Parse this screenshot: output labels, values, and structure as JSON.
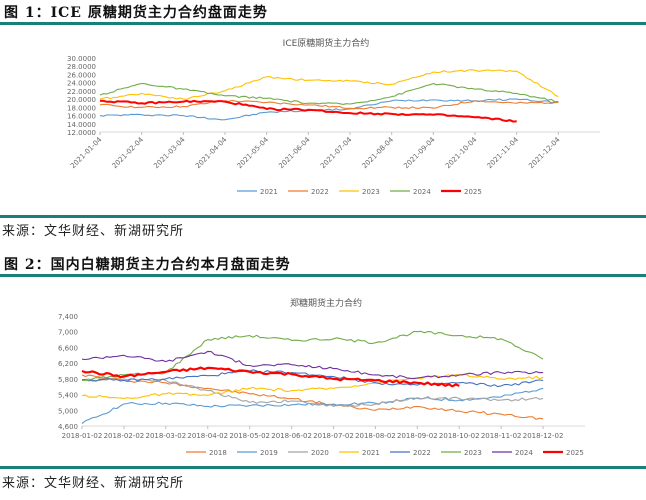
{
  "figure1": {
    "caption": "图 1：ICE 原糖期货主力合约盘面走势",
    "source": "来源：文华财经、新湖研究所"
  },
  "figure2": {
    "caption": "图 2：国内白糖期货主力合约本月盘面走势",
    "source": "来源：文华财经、新湖研究所"
  },
  "chart_data": [
    {
      "type": "line",
      "title": "ICE原糖期货主力合约",
      "xlabel": "",
      "ylabel": "",
      "ylim": [
        12,
        30
      ],
      "yticks": [
        "12.0000",
        "14.0000",
        "16.0000",
        "18.0000",
        "20.0000",
        "22.0000",
        "24.0000",
        "26.0000",
        "28.0000",
        "30.0000"
      ],
      "categories": [
        "2021-01-04",
        "2021-02-04",
        "2021-03-04",
        "2021-04-04",
        "2021-05-04",
        "2021-06-04",
        "2021-07-04",
        "2021-08-04",
        "2021-09-04",
        "2021-10-04",
        "2021-11-04",
        "2021-12-04"
      ],
      "legend_position": "bottom",
      "grid": false,
      "series": [
        {
          "name": "2021",
          "color": "#5b9bd5",
          "values": [
            16.0,
            16.2,
            16.0,
            15.0,
            16.8,
            17.2,
            17.6,
            19.6,
            19.8,
            19.6,
            20.0,
            19.2
          ]
        },
        {
          "name": "2022",
          "color": "#ed7d31",
          "values": [
            18.6,
            18.0,
            18.2,
            19.6,
            19.2,
            18.6,
            17.8,
            18.0,
            17.8,
            19.6,
            19.0,
            19.2
          ]
        },
        {
          "name": "2023",
          "color": "#ffc000",
          "values": [
            20.0,
            21.4,
            20.0,
            22.0,
            25.4,
            24.6,
            24.4,
            23.6,
            26.6,
            27.0,
            26.8,
            20.6
          ]
        },
        {
          "name": "2024",
          "color": "#70ad47",
          "values": [
            21.0,
            23.8,
            22.4,
            20.8,
            20.2,
            19.0,
            18.8,
            20.6,
            23.8,
            22.4,
            21.4,
            19.4
          ]
        },
        {
          "name": "2025",
          "color": "#ff0000",
          "values": [
            19.6,
            19.0,
            19.4,
            19.4,
            17.6,
            17.4,
            16.6,
            16.4,
            16.2,
            15.6,
            14.6,
            null
          ]
        }
      ]
    },
    {
      "type": "line",
      "title": "郑糖期货主力合约",
      "xlabel": "",
      "ylabel": "",
      "ylim": [
        4600,
        7400
      ],
      "yticks": [
        "4,600",
        "5,000",
        "5,400",
        "5,800",
        "6,200",
        "6,600",
        "7,000",
        "7,400"
      ],
      "categories": [
        "2018-01-02",
        "2018-02-02",
        "2018-03-02",
        "2018-04-02",
        "2018-05-02",
        "2018-06-02",
        "2018-07-02",
        "2018-08-02",
        "2018-09-02",
        "2018-10-02",
        "2018-11-02",
        "2018-12-02"
      ],
      "legend_position": "bottom",
      "grid": false,
      "series": [
        {
          "name": "2018",
          "color": "#ed7d31",
          "values": [
            5900,
            5760,
            5700,
            5560,
            5420,
            5300,
            5140,
            5000,
            5100,
            4980,
            4900,
            4780
          ]
        },
        {
          "name": "2019",
          "color": "#5b9bd5",
          "values": [
            4660,
            5160,
            5180,
            5100,
            5120,
            5140,
            5160,
            5180,
            5300,
            5260,
            5340,
            5560
          ]
        },
        {
          "name": "2020",
          "color": "#a5a5a5",
          "values": [
            5760,
            5800,
            5760,
            5500,
            5200,
            5240,
            5100,
            5160,
            5320,
            5300,
            5260,
            5300
          ]
        },
        {
          "name": "2021",
          "color": "#ffc000",
          "values": [
            5380,
            5300,
            5420,
            5380,
            5560,
            5500,
            5560,
            5700,
            5820,
            5900,
            5800,
            5840
          ]
        },
        {
          "name": "2022",
          "color": "#4472c4",
          "values": [
            5780,
            5760,
            5800,
            5880,
            6000,
            5960,
            5860,
            5700,
            5640,
            5700,
            5620,
            5760
          ]
        },
        {
          "name": "2023",
          "color": "#70ad47",
          "values": [
            5760,
            5900,
            5960,
            6800,
            6900,
            6780,
            6820,
            6720,
            7000,
            6900,
            6820,
            6300
          ]
        },
        {
          "name": "2024",
          "color": "#7030a0",
          "values": [
            6300,
            6400,
            6240,
            6500,
            6140,
            6160,
            6060,
            5900,
            5820,
            5900,
            5960,
            5960
          ]
        },
        {
          "name": "2025",
          "color": "#ff0000",
          "values": [
            6000,
            5860,
            5980,
            6080,
            5980,
            5920,
            5800,
            5760,
            5700,
            5620,
            null,
            null
          ]
        }
      ]
    }
  ]
}
